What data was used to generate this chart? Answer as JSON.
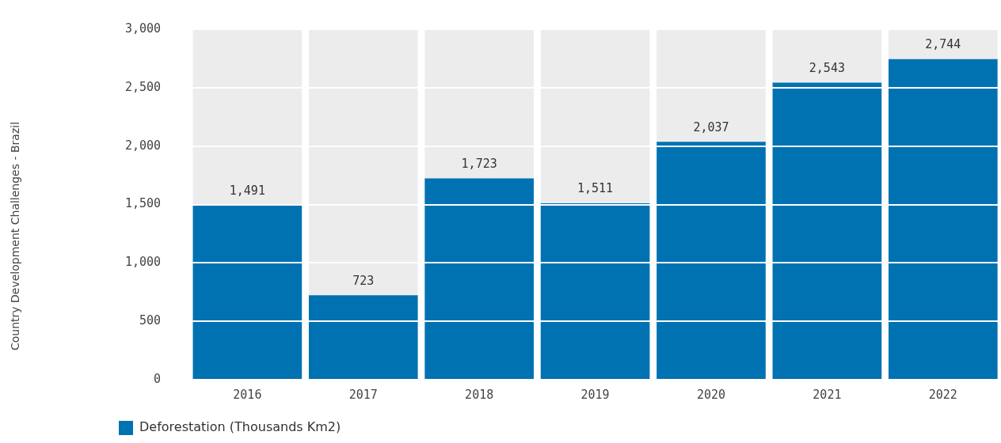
{
  "chart_data": {
    "type": "bar",
    "annotations": [
      "Country Development Challenges - Brazil"
    ],
    "categories": [
      "2016",
      "2017",
      "2018",
      "2019",
      "2020",
      "2021",
      "2022"
    ],
    "series": [
      {
        "name": "Deforestation (Thousands Km2)",
        "color": "#0072b2",
        "values": [
          1491,
          723,
          1723,
          1511,
          2037,
          2543,
          2744
        ],
        "value_labels": [
          "1,491",
          "723",
          "1,723",
          "1,511",
          "2,037",
          "2,543",
          "2,744"
        ]
      }
    ],
    "ylim": [
      0,
      3000
    ],
    "yticks": [
      0,
      500,
      {
        "value": 1000,
        "label": "1,000"
      },
      {
        "value": 1500,
        "label": "1,500"
      },
      {
        "value": 2000,
        "label": "2,000"
      },
      {
        "value": 2500,
        "label": "2,500"
      },
      {
        "value": 3000,
        "label": "3,000"
      }
    ],
    "grid": "y",
    "legend": "bottom left"
  }
}
